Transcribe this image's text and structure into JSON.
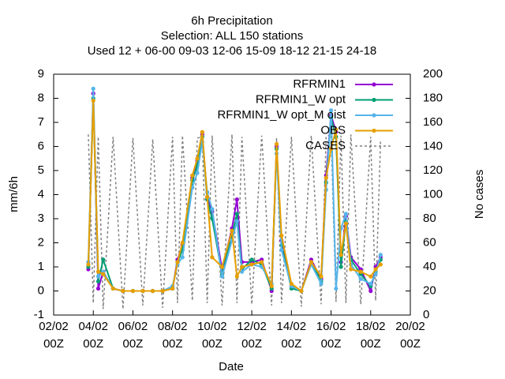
{
  "chart_data": {
    "type": "line",
    "title": "6h Precipitation",
    "subtitle": "Selection: ALL    150 stations",
    "annotation": "Used  12 + 06-00 09-03 12-06 15-09 18-12 21-15 24-18",
    "ylabel": "mm/6h",
    "y2label": "No cases",
    "xlabel": "Date",
    "x": [
      3.75,
      4.0,
      4.25,
      4.5,
      5,
      5.5,
      6,
      6.5,
      7,
      7.5,
      8,
      8.25,
      8.5,
      9,
      9.25,
      9.5,
      9.75,
      10,
      10.5,
      11,
      11.25,
      11.5,
      12,
      12.5,
      13,
      13.25,
      13.5,
      14,
      14.5,
      15,
      15.5,
      15.75,
      16,
      16.25,
      16.5,
      16.75,
      17,
      17.5,
      18,
      18.25,
      18.5
    ],
    "xlim": [
      2,
      20
    ],
    "xticks": [
      {
        "value": 2,
        "label": "02/02 00Z"
      },
      {
        "value": 4,
        "label": "04/02 00Z"
      },
      {
        "value": 6,
        "label": "06/02 00Z"
      },
      {
        "value": 8,
        "label": "08/02 00Z"
      },
      {
        "value": 10,
        "label": "10/02 00Z"
      },
      {
        "value": 12,
        "label": "12/02 00Z"
      },
      {
        "value": 14,
        "label": "14/02 00Z"
      },
      {
        "value": 16,
        "label": "16/02 00Z"
      },
      {
        "value": 18,
        "label": "18/02 00Z"
      },
      {
        "value": 20,
        "label": "20/02 00Z"
      }
    ],
    "ylim": [
      -1,
      9
    ],
    "yticks": [
      -1,
      0,
      1,
      2,
      3,
      4,
      5,
      6,
      7,
      8,
      9
    ],
    "y2lim": [
      0,
      200
    ],
    "y2ticks": [
      0,
      20,
      40,
      60,
      80,
      100,
      120,
      140,
      160,
      180,
      200
    ],
    "series": [
      {
        "name": "RFRMIN1",
        "color": "#9400d3",
        "values": [
          0.9,
          8.2,
          0.1,
          0.8,
          0.1,
          0,
          0,
          0,
          0,
          0,
          0.1,
          1.3,
          1.9,
          4.7,
          5.4,
          6.5,
          3.9,
          3.3,
          0.9,
          2.6,
          3.8,
          1.2,
          1.2,
          1.3,
          0,
          6,
          2.1,
          0.2,
          0,
          1.3,
          0.5,
          4.8,
          7.3,
          6.6,
          1.2,
          3.1,
          1.4,
          0.9,
          0,
          1,
          1.4
        ]
      },
      {
        "name": "RFRMIN1_W opt",
        "color": "#009e73",
        "values": [
          1,
          8,
          0.4,
          1.3,
          0.1,
          0,
          0,
          0,
          0,
          0,
          0.1,
          1.2,
          1.7,
          4.6,
          5.2,
          6.4,
          3.8,
          3,
          0.7,
          2.3,
          3.2,
          0.9,
          1.3,
          1.1,
          0.1,
          5.9,
          1.9,
          0.1,
          0,
          1.2,
          0.4,
          4.5,
          7.2,
          6.4,
          1,
          2.9,
          1.3,
          0.7,
          0.2,
          0.8,
          1.3
        ]
      },
      {
        "name": "RFRMIN1_W opt_M oist",
        "color": "#56b4e9",
        "values": [
          1.2,
          8.4,
          0.6,
          0.8,
          0.1,
          0,
          0,
          0,
          0,
          0,
          0.2,
          1.1,
          1.4,
          4.3,
          4.9,
          6.2,
          4.1,
          3.4,
          0.6,
          2.1,
          2.9,
          0.8,
          1.1,
          1,
          0.3,
          5.7,
          1.7,
          0.2,
          0,
          1.1,
          0.3,
          4.2,
          7.5,
          0.1,
          2.6,
          3.2,
          1.1,
          0.5,
          0.3,
          0.7,
          1.5
        ]
      },
      {
        "name": "OBS",
        "color": "#e69f00",
        "values": [
          1.1,
          7.9,
          0.8,
          0.7,
          0.1,
          0,
          0,
          0,
          0,
          0,
          0.1,
          1.2,
          2,
          4.8,
          5.5,
          6.6,
          3.9,
          1.4,
          1,
          2.5,
          0.6,
          1,
          1.1,
          1.2,
          0.2,
          6.1,
          2.3,
          0.3,
          0,
          1.2,
          0.6,
          4.7,
          5.9,
          6.7,
          1.5,
          2.8,
          0.9,
          0.8,
          0.6,
          0.9,
          1.1
        ]
      },
      {
        "name": "CASES",
        "color": "#808080",
        "axis": "y2",
        "values": [
          150,
          10,
          148,
          5,
          148,
          5,
          147,
          8,
          146,
          6,
          148,
          10,
          149,
          12,
          147,
          148,
          10,
          149,
          8,
          150,
          10,
          148,
          9,
          149,
          8,
          147,
          10,
          148,
          7,
          149,
          9,
          148,
          150,
          11,
          149,
          10,
          150,
          9,
          148,
          12,
          146
        ]
      }
    ]
  }
}
